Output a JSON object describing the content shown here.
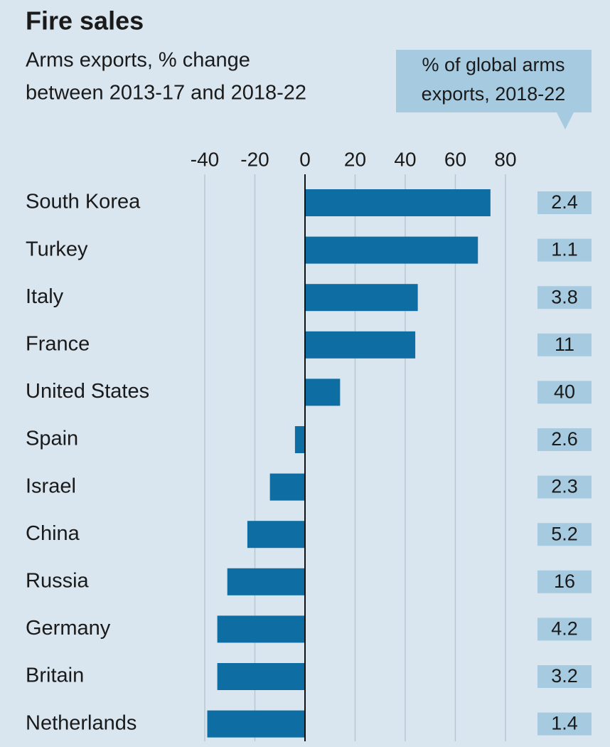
{
  "chart_data": {
    "type": "barh",
    "title": "Fire sales",
    "subtitle": [
      "Arms exports, % change",
      "between 2013-17 and 2018-22"
    ],
    "categories": [
      "South Korea",
      "Turkey",
      "Italy",
      "France",
      "United States",
      "Spain",
      "Israel",
      "China",
      "Russia",
      "Germany",
      "Britain",
      "Netherlands"
    ],
    "values": [
      74,
      69,
      45,
      44,
      14,
      -4,
      -14,
      -23,
      -31,
      -35,
      -35,
      -39
    ],
    "color": "#0e6ea3",
    "xlim": [
      -40,
      80
    ],
    "xticks": [
      -40,
      -20,
      0,
      20,
      40,
      60,
      80
    ],
    "grid": true,
    "share": {
      "title": [
        "% of global arms",
        "exports, 2018-22"
      ],
      "values": [
        2.4,
        1.1,
        3.8,
        11,
        40,
        2.6,
        2.3,
        5.2,
        16,
        4.2,
        3.2,
        1.4
      ],
      "color": "#a6cbe1"
    }
  }
}
